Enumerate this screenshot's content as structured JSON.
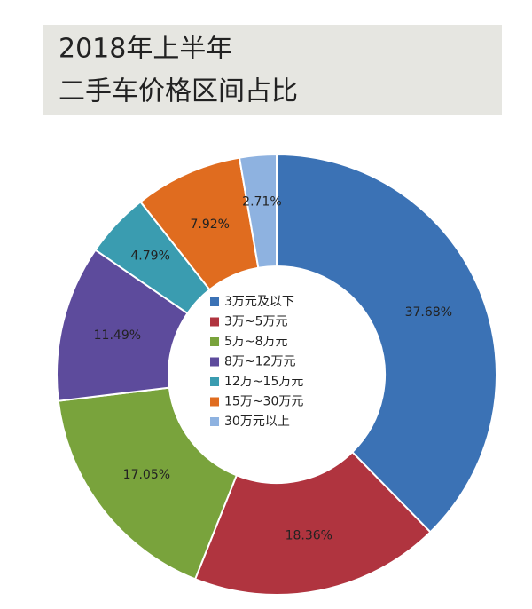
{
  "chart_data": {
    "type": "donut",
    "title": [
      "2018年上半年",
      "二手车价格区间占比"
    ],
    "categories": [
      "3万元及以下",
      "3万~5万元",
      "5万~8万元",
      "8万~12万元",
      "12万~15万元",
      "15万~30万元",
      "30万元以上"
    ],
    "values": [
      37.68,
      18.36,
      17.05,
      11.49,
      4.79,
      7.92,
      2.71
    ],
    "value_labels": [
      "37.68%",
      "18.36%",
      "17.05%",
      "11.49%",
      "4.79%",
      "7.92%",
      "2.71%"
    ],
    "colors": [
      "#3b72b5",
      "#b0343f",
      "#79a33c",
      "#5d4b9c",
      "#3a9cb0",
      "#e06c1f",
      "#8eb2e0"
    ],
    "legend": "center"
  }
}
